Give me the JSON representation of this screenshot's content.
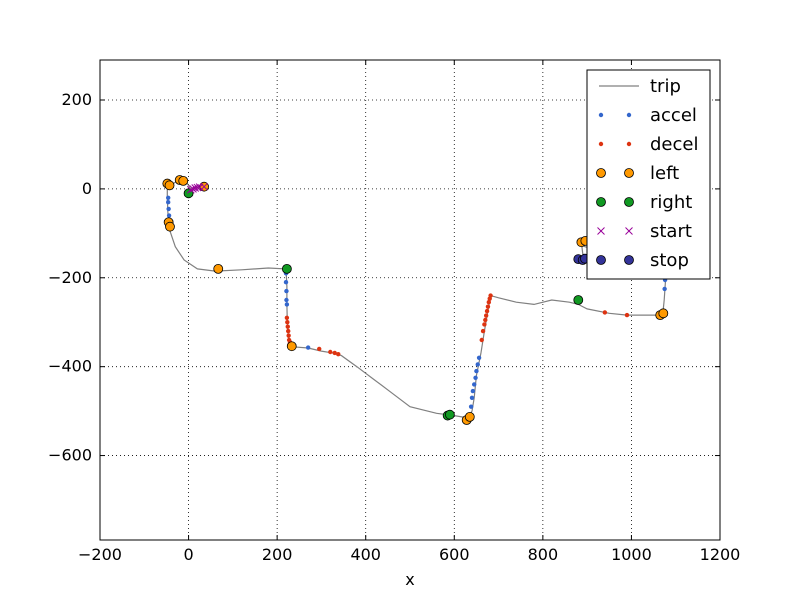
{
  "chart_data": {
    "type": "scatter",
    "title": "",
    "xlabel": "x",
    "ylabel": "",
    "xlim": [
      -200,
      1200
    ],
    "ylim": [
      -790,
      290
    ],
    "xticks": [
      -200,
      0,
      200,
      400,
      600,
      800,
      1000,
      1200
    ],
    "yticks": [
      200,
      0,
      -200,
      -400,
      -600
    ],
    "xtick_labels": [
      "−200",
      "0",
      "200",
      "400",
      "600",
      "800",
      "1000",
      "1200"
    ],
    "ytick_labels": [
      "200",
      "0",
      "−200",
      "−400",
      "−600"
    ],
    "grid": true,
    "legend_position": "upper-right",
    "colors": {
      "trip": "#808080",
      "accel": "#3366cc",
      "decel": "#dd3311",
      "left": "#ff9900",
      "right": "#119922",
      "start": "#990099",
      "stop": "#333399"
    },
    "series": [
      {
        "name": "trip",
        "kind": "line",
        "x": [
          30,
          15,
          5,
          -5,
          -15,
          -25,
          -35,
          -48,
          -48,
          -47,
          -45,
          -42,
          -30,
          -10,
          20,
          60,
          120,
          180,
          220,
          222,
          222,
          223,
          225,
          228,
          232,
          270,
          300,
          330,
          345,
          380,
          420,
          460,
          500,
          560,
          600,
          630,
          640,
          645,
          650,
          660,
          668,
          675,
          682,
          700,
          740,
          780,
          820,
          860,
          880,
          900,
          950,
          990,
          1040,
          1068,
          1072,
          1074,
          1076,
          1078,
          1076,
          1065,
          1030,
          990,
          950,
          915,
          895,
          888,
          887,
          890,
          895
        ],
        "y": [
          5,
          3,
          0,
          15,
          20,
          18,
          12,
          5,
          -20,
          -50,
          -80,
          -95,
          -130,
          -160,
          -180,
          -185,
          -182,
          -178,
          -180,
          -220,
          -260,
          -300,
          -330,
          -352,
          -355,
          -358,
          -365,
          -370,
          -375,
          -400,
          -430,
          -460,
          -490,
          -505,
          -510,
          -515,
          -500,
          -470,
          -420,
          -370,
          -320,
          -280,
          -240,
          -245,
          -255,
          -260,
          -250,
          -255,
          -260,
          -270,
          -280,
          -284,
          -284,
          -284,
          -270,
          -250,
          -220,
          -190,
          -160,
          -135,
          -125,
          -130,
          -135,
          -135,
          -130,
          -125,
          -120,
          -145,
          -158
        ]
      },
      {
        "name": "accel",
        "kind": "points",
        "x": [
          -46,
          -46,
          -45,
          -44,
          220,
          220,
          221,
          221,
          222,
          270,
          636,
          638,
          640,
          642,
          645,
          648,
          650,
          653,
          656,
          1075,
          1076,
          1077,
          1078
        ],
        "y": [
          -20,
          -30,
          -45,
          -60,
          -190,
          -210,
          -230,
          -250,
          -260,
          -357,
          -510,
          -490,
          -470,
          -455,
          -440,
          -425,
          -410,
          -395,
          -380,
          -225,
          -205,
          -185,
          -165
        ]
      },
      {
        "name": "decel",
        "kind": "points",
        "x": [
          222,
          223,
          224,
          225,
          226,
          227,
          228,
          229,
          295,
          320,
          330,
          338,
          662,
          665,
          668,
          670,
          672,
          674,
          676,
          678,
          680,
          682,
          940,
          990
        ],
        "y": [
          -290,
          -300,
          -310,
          -320,
          -330,
          -340,
          -350,
          -345,
          -360,
          -367,
          -369,
          -372,
          -340,
          -320,
          -305,
          -295,
          -285,
          -275,
          -265,
          -255,
          -247,
          -240,
          -278,
          -284
        ]
      },
      {
        "name": "left",
        "kind": "points",
        "x": [
          -48,
          -43,
          -45,
          -42,
          -20,
          -12,
          35,
          67,
          233,
          628,
          635,
          1065,
          1072,
          887,
          896
        ],
        "y": [
          12,
          8,
          -75,
          -85,
          20,
          18,
          5,
          -180,
          -354,
          -520,
          -513,
          -284,
          -280,
          -120,
          -117
        ]
      },
      {
        "name": "right",
        "kind": "points",
        "x": [
          0,
          222,
          585,
          590,
          880
        ],
        "y": [
          -10,
          -180,
          -510,
          -508,
          -250
        ]
      },
      {
        "name": "start",
        "kind": "points",
        "x": [
          5,
          10,
          15,
          20,
          25,
          35
        ],
        "y": [
          -2,
          0,
          2,
          3,
          4,
          5
        ]
      },
      {
        "name": "stop",
        "kind": "points",
        "x": [
          880,
          890,
          895
        ],
        "y": [
          -158,
          -160,
          -157
        ]
      }
    ]
  }
}
